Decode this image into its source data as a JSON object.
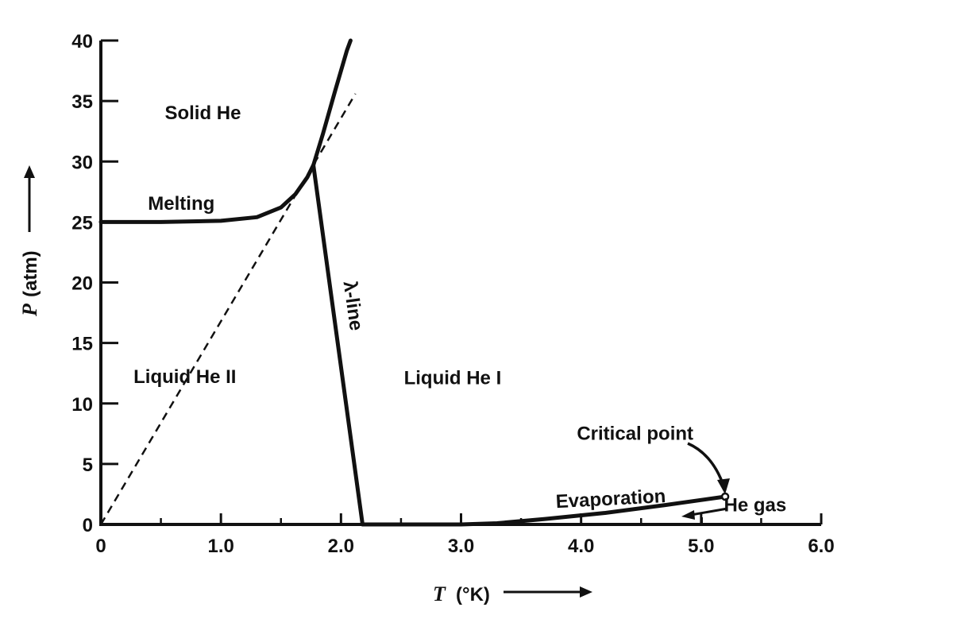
{
  "chart_data": {
    "type": "line",
    "title": "",
    "xlabel": {
      "symbol": "T",
      "unit": "(°K)"
    },
    "ylabel": {
      "symbol": "P",
      "unit": "(atm)"
    },
    "xlim": [
      0,
      6.0
    ],
    "ylim": [
      0,
      40
    ],
    "x_ticks": [
      0,
      1.0,
      2.0,
      3.0,
      4.0,
      5.0,
      6.0
    ],
    "x_tick_labels": [
      "0",
      "1.0",
      "2.0",
      "3.0",
      "4.0",
      "5.0",
      "6.0"
    ],
    "y_ticks": [
      0,
      5,
      10,
      15,
      20,
      25,
      30,
      35,
      40
    ],
    "y_tick_labels": [
      "0",
      "5",
      "10",
      "15",
      "20",
      "25",
      "30",
      "35",
      "40"
    ],
    "grid": false,
    "series": [
      {
        "name": "Melting",
        "style": "solid",
        "x": [
          0,
          0.5,
          1.0,
          1.3,
          1.5,
          1.62,
          1.72,
          1.77,
          1.85,
          1.95,
          2.05,
          2.08
        ],
        "y": [
          25,
          25,
          25.1,
          25.4,
          26.2,
          27.3,
          28.7,
          29.7,
          32.3,
          35.8,
          39.2,
          40.0
        ]
      },
      {
        "name": "λ-line",
        "style": "solid",
        "x": [
          1.77,
          2.18
        ],
        "y": [
          29.7,
          0
        ]
      },
      {
        "name": "",
        "style": "dashed",
        "x": [
          0,
          2.12
        ],
        "y": [
          0,
          35.6
        ]
      },
      {
        "name": "Evaporation",
        "style": "solid",
        "x": [
          2.18,
          3.0,
          3.3,
          3.7,
          4.2,
          4.7,
          5.2
        ],
        "y": [
          0,
          0,
          0.1,
          0.45,
          0.95,
          1.6,
          2.3
        ]
      },
      {
        "name": "He gas",
        "style": "solid",
        "x": [
          5.2,
          5.2
        ],
        "y": [
          0,
          0
        ]
      }
    ],
    "annotations": [
      {
        "text": "Solid He",
        "x": 0.85,
        "y": 33.5
      },
      {
        "text": "Melting",
        "x": 0.67,
        "y": 26.0
      },
      {
        "text": "Liquid He II",
        "x": 0.7,
        "y": 11.7
      },
      {
        "text": "Liquid He I",
        "x": 2.93,
        "y": 11.6
      },
      {
        "text": "λ-line",
        "x": 2.05,
        "y": 18.0,
        "rotation": 82
      },
      {
        "text": "Critical point",
        "x": 4.45,
        "y": 7.0
      },
      {
        "text": "Evaporation",
        "x": 4.25,
        "y": 1.6,
        "rotation": -3
      },
      {
        "text": "He gas",
        "x": 5.45,
        "y": 1.1
      }
    ],
    "critical_point": {
      "x": 5.2,
      "y": 2.3
    }
  }
}
